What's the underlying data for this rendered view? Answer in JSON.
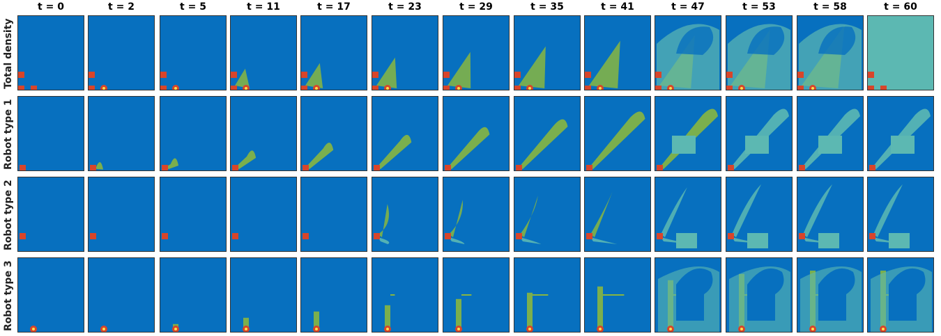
{
  "figure": {
    "colors": {
      "background": "#0770bf",
      "low_density": "#5cb8b2",
      "mid_density": "#88b640",
      "high_density": "#7aa028",
      "robot_marker": "#d8452a",
      "robot_marker_center": "#ffe04a"
    },
    "columns": [
      "t = 0",
      "t = 2",
      "t = 5",
      "t = 11",
      "t = 17",
      "t = 23",
      "t = 29",
      "t = 35",
      "t = 41",
      "t = 47",
      "t = 53",
      "t = 58",
      "t = 60"
    ],
    "rows": [
      "Total density",
      "Robot type 1",
      "Robot type 2",
      "Robot type 3"
    ]
  }
}
